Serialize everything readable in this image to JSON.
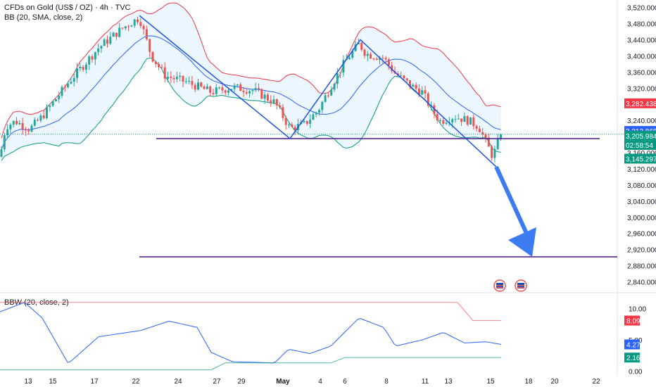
{
  "chart_data": {
    "type": "candlestick",
    "instrument": "CFDs on Gold (US$ / OZ)",
    "header": {
      "title": "CFDs on Gold (US$ / OZ) · 4h · TVC",
      "indicator": "BB (20, SMA, close, 2)",
      "sub_indicator": "BBW (20, close, 2)"
    },
    "x_tick_labels": [
      "13",
      "15",
      "17",
      "22",
      "24",
      "27",
      "29",
      "May",
      "4",
      "6",
      "8",
      "11",
      "13",
      "15",
      "18",
      "20",
      "22"
    ],
    "y_tick_labels": [
      "3,520.000",
      "3,480.000",
      "3,440.000",
      "3,400.000",
      "3,360.000",
      "3,320.000",
      "3,240.000",
      "3,160.000",
      "3,120.000",
      "3,080.000",
      "3,040.000",
      "3,000.000",
      "2,960.000",
      "2,920.000",
      "2,880.000",
      "2,840.000"
    ],
    "ylim": [
      2820,
      3535
    ],
    "price_labels": {
      "upper_band": "3,282.438",
      "mid_band": "3,213.868",
      "last_price": "3,205.984",
      "countdown": "02:58:54",
      "lower_band": "3,145.297"
    },
    "bbw": {
      "tick_labels": [
        "10.00",
        "5.00",
        "0.00"
      ],
      "ylim": [
        -0.3,
        11.2
      ],
      "value_labels": {
        "upper": "8.09",
        "bbw": "4.27",
        "lower": "2.16"
      }
    },
    "levels": [
      3195,
      2902
    ],
    "colors": {
      "up": "#26a69a",
      "down": "#ef5350",
      "upper_band": "#f23645",
      "basis": "#2962ff",
      "lower_band": "#089981",
      "band_fill": "#e3f2fd",
      "trendline": "#1e53e5",
      "level": "#4a148c",
      "arrow": "#3d7cf0",
      "last_price": "#089981"
    },
    "icons": [
      "us-flag-event-icon",
      "us-flag-event-icon"
    ]
  }
}
